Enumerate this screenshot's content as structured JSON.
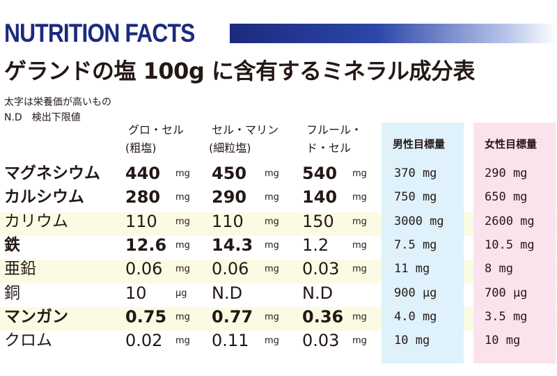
{
  "header": {
    "title": "NUTRITION FACTS"
  },
  "title": "ゲランドの塩 100g に含有するミネラル成分表",
  "notes": [
    "太字は栄養価が高いもの",
    "N.D　検出下限値"
  ],
  "columns": [
    {
      "line1": "グロ・セル",
      "line2": "(粗塩)"
    },
    {
      "line1": "セル・マリン",
      "line2": "(細粒塩)"
    },
    {
      "line1": "フルール・",
      "line2": "ド・セル"
    }
  ],
  "targets": {
    "male": "男性目標量",
    "female": "女性目標量"
  },
  "rows": [
    {
      "name": "マグネシウム",
      "bold": true,
      "v": [
        {
          "val": "440",
          "unit": "mg",
          "bold": true
        },
        {
          "val": "450",
          "unit": "mg",
          "bold": true
        },
        {
          "val": "540",
          "unit": "mg",
          "bold": true
        }
      ],
      "male": "370 mg",
      "female": "290 mg"
    },
    {
      "name": "カルシウム",
      "bold": true,
      "v": [
        {
          "val": "280",
          "unit": "mg",
          "bold": true
        },
        {
          "val": "290",
          "unit": "mg",
          "bold": true
        },
        {
          "val": "140",
          "unit": "mg",
          "bold": true
        }
      ],
      "male": "750 mg",
      "female": "650 mg"
    },
    {
      "name": "カリウム",
      "bold": false,
      "v": [
        {
          "val": "110",
          "unit": "mg",
          "bold": false
        },
        {
          "val": "110",
          "unit": "mg",
          "bold": false
        },
        {
          "val": "150",
          "unit": "mg",
          "bold": false
        }
      ],
      "male": "3000 mg",
      "female": "2600 mg"
    },
    {
      "name": "鉄",
      "bold": true,
      "v": [
        {
          "val": "12.6",
          "unit": "mg",
          "bold": true
        },
        {
          "val": "14.3",
          "unit": "mg",
          "bold": true
        },
        {
          "val": "1.2",
          "unit": "mg",
          "bold": false
        }
      ],
      "male": "7.5 mg",
      "female": "10.5 mg"
    },
    {
      "name": "亜鉛",
      "bold": false,
      "v": [
        {
          "val": "0.06",
          "unit": "mg",
          "bold": false
        },
        {
          "val": "0.06",
          "unit": "mg",
          "bold": false
        },
        {
          "val": "0.03",
          "unit": "mg",
          "bold": false
        }
      ],
      "male": "11 mg",
      "female": "8 mg"
    },
    {
      "name": "銅",
      "bold": false,
      "v": [
        {
          "val": "10",
          "unit": "μg",
          "bold": false
        },
        {
          "val": "N.D",
          "unit": "",
          "bold": false
        },
        {
          "val": "N.D",
          "unit": "",
          "bold": false
        }
      ],
      "male": "900 μg",
      "female": "700 μg"
    },
    {
      "name": "マンガン",
      "bold": true,
      "v": [
        {
          "val": "0.75",
          "unit": "mg",
          "bold": true
        },
        {
          "val": "0.77",
          "unit": "mg",
          "bold": true
        },
        {
          "val": "0.36",
          "unit": "mg",
          "bold": true
        }
      ],
      "male": "4.0 mg",
      "female": "3.5 mg"
    },
    {
      "name": "クロム",
      "bold": false,
      "v": [
        {
          "val": "0.02",
          "unit": "mg",
          "bold": false
        },
        {
          "val": "0.11",
          "unit": "mg",
          "bold": false
        },
        {
          "val": "0.03",
          "unit": "mg",
          "bold": false
        }
      ],
      "male": "10 mg",
      "female": "10 mg"
    }
  ]
}
